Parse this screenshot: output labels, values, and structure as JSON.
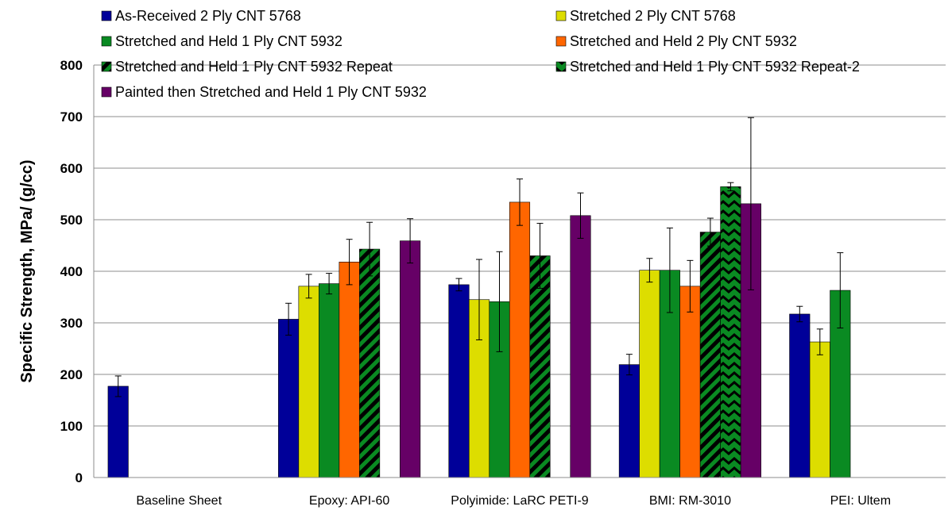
{
  "chart_data": {
    "type": "bar",
    "title": "",
    "xlabel": "",
    "ylabel": "Specific Strength, MPa/ (g/cc)",
    "ylim": [
      0,
      800
    ],
    "yticks": [
      0,
      100,
      200,
      300,
      400,
      500,
      600,
      700,
      800
    ],
    "grid": true,
    "legend_position": "top",
    "categories": [
      "Baseline Sheet",
      "Epoxy: API-60",
      "Polyimide: LaRC PETI-9",
      "BMI: RM-3010",
      "PEI: Ultem"
    ],
    "series": [
      {
        "name": "As-Received 2 Ply CNT 5768",
        "color": "#000099",
        "pattern": "solid",
        "values": [
          177,
          307,
          374,
          219,
          317
        ],
        "errors": [
          20,
          31,
          12,
          20,
          15
        ]
      },
      {
        "name": "Stretched 2 Ply CNT 5768",
        "color": "#dddd00",
        "pattern": "solid",
        "values": [
          0,
          371,
          345,
          402,
          263
        ],
        "errors": [
          0,
          23,
          78,
          23,
          25
        ]
      },
      {
        "name": "Stretched and Held 1 Ply CNT 5932",
        "color": "#0a8a22",
        "pattern": "solid",
        "values": [
          0,
          376,
          341,
          402,
          363
        ],
        "errors": [
          0,
          20,
          97,
          82,
          73
        ]
      },
      {
        "name": "Stretched and Held 2 Ply CNT 5932",
        "color": "#ff6600",
        "pattern": "solid",
        "values": [
          0,
          418,
          534,
          371,
          0
        ],
        "errors": [
          0,
          44,
          45,
          50,
          0
        ]
      },
      {
        "name": "Stretched and Held 1 Ply CNT 5932 Repeat",
        "color": "#0a8a22",
        "pattern": "diagonal",
        "values": [
          0,
          443,
          430,
          476,
          0
        ],
        "errors": [
          0,
          52,
          63,
          27,
          0
        ]
      },
      {
        "name": "Stretched and Held 1 Ply CNT 5932 Repeat-2",
        "color": "#0a8a22",
        "pattern": "chevron",
        "values": [
          0,
          0,
          0,
          564,
          0
        ],
        "errors": [
          0,
          0,
          0,
          8,
          0
        ]
      },
      {
        "name": "Painted then Stretched and Held 1 Ply CNT 5932",
        "color": "#660066",
        "pattern": "solid",
        "values": [
          0,
          459,
          508,
          531,
          0
        ],
        "errors": [
          0,
          43,
          44,
          167,
          0
        ]
      }
    ]
  }
}
